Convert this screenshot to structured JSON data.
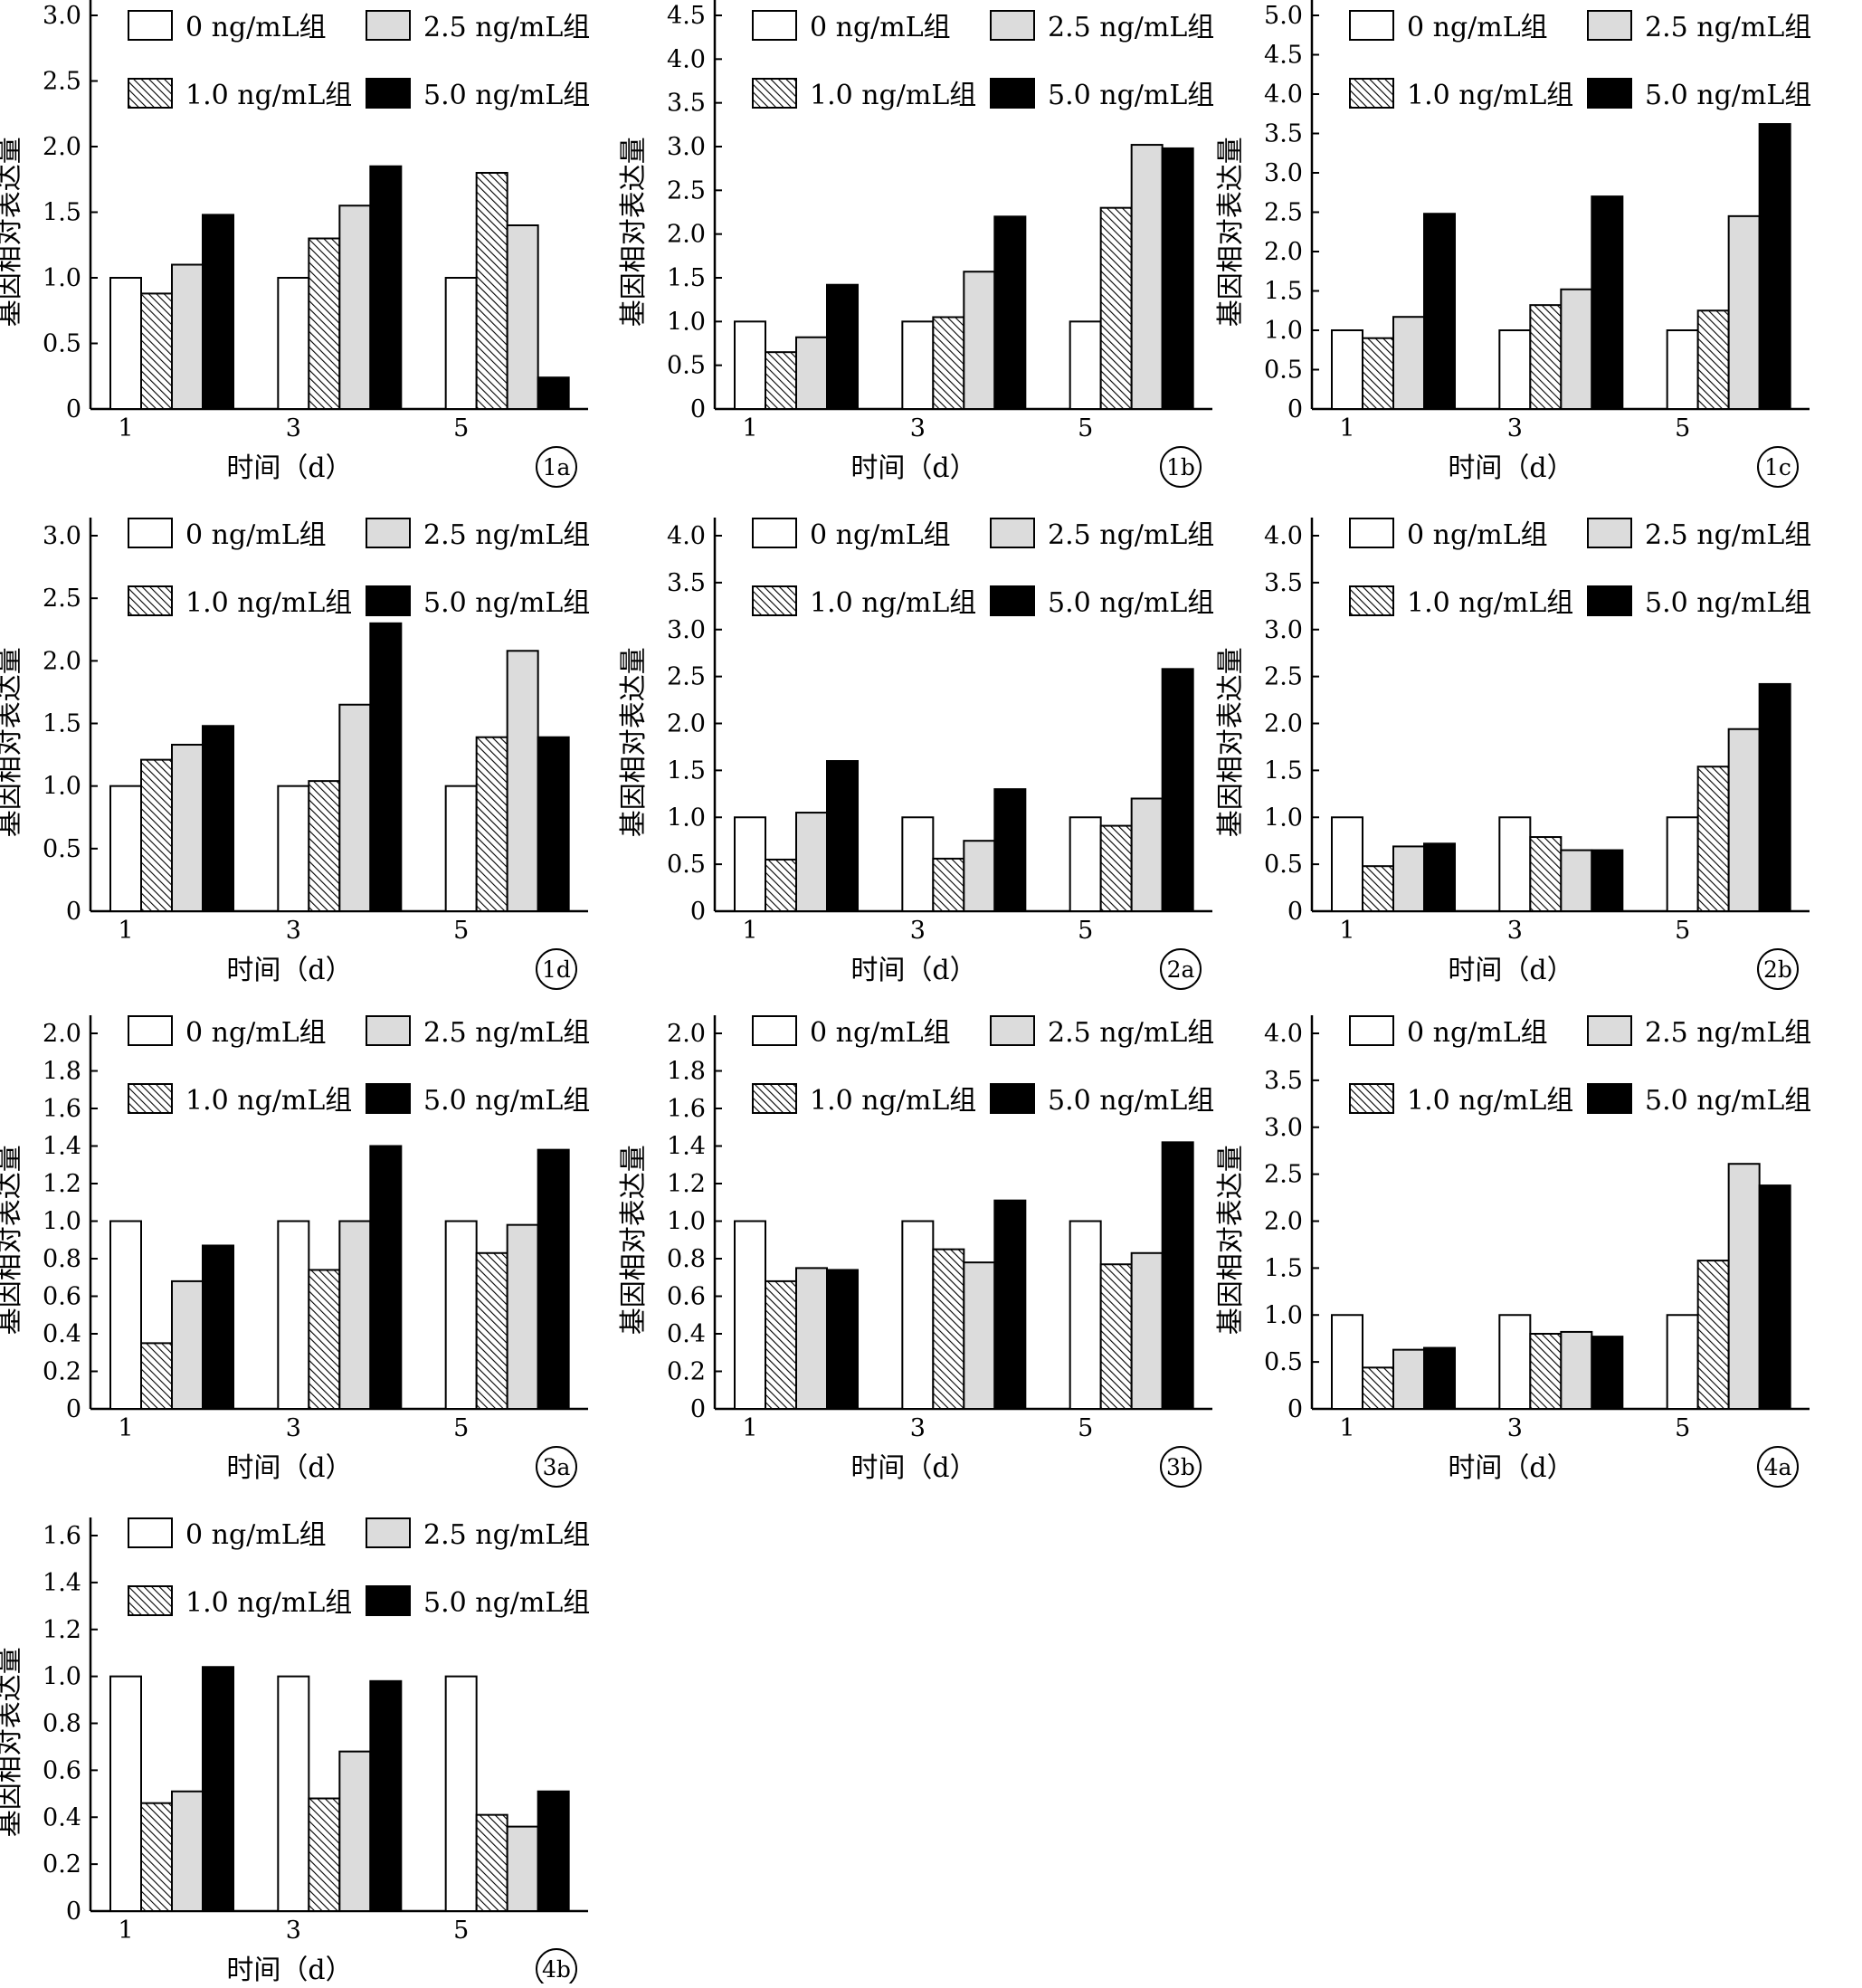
{
  "legend": {
    "items": [
      {
        "label": "0 ng/mL组",
        "pattern": "white"
      },
      {
        "label": "2.5 ng/mL组",
        "pattern": "lightgray"
      },
      {
        "label": "1.0 ng/mL组",
        "pattern": "hatch"
      },
      {
        "label": "5.0 ng/mL组",
        "pattern": "black"
      }
    ]
  },
  "colors": {
    "white": "#ffffff",
    "lightgray": "#dcdcdc",
    "black": "#000000",
    "axis": "#000000"
  },
  "xlabel": "时间（d）",
  "ylabel": "基因相对表达量",
  "categories": [
    "1",
    "3",
    "5"
  ],
  "series_order": [
    "0 ng/mL组",
    "1.0 ng/mL组",
    "2.5 ng/mL组",
    "5.0 ng/mL组"
  ],
  "chart_data": [
    {
      "type": "bar",
      "panel": "1a",
      "xlabel": "时间（d）",
      "ylabel": "基因相对表达量",
      "categories": [
        "1",
        "3",
        "5"
      ],
      "ylim": [
        0,
        3.0
      ],
      "yticks": [
        "0",
        "0.5",
        "1.0",
        "1.5",
        "2.0",
        "2.5",
        "3.0"
      ],
      "series": [
        {
          "name": "0 ng/mL组",
          "values": [
            1.0,
            1.0,
            1.0
          ]
        },
        {
          "name": "1.0 ng/mL组",
          "values": [
            0.88,
            1.3,
            1.8
          ]
        },
        {
          "name": "2.5 ng/mL组",
          "values": [
            1.1,
            1.55,
            1.4
          ]
        },
        {
          "name": "5.0 ng/mL组",
          "values": [
            1.48,
            1.85,
            0.24
          ]
        }
      ]
    },
    {
      "type": "bar",
      "panel": "1b",
      "xlabel": "时间（d）",
      "ylabel": "基因相对表达量",
      "categories": [
        "1",
        "3",
        "5"
      ],
      "ylim": [
        0,
        4.5
      ],
      "yticks": [
        "0",
        "0.5",
        "1.0",
        "1.5",
        "2.0",
        "2.5",
        "3.0",
        "3.5",
        "4.0",
        "4.5"
      ],
      "series": [
        {
          "name": "0 ng/mL组",
          "values": [
            1.0,
            1.0,
            1.0
          ]
        },
        {
          "name": "1.0 ng/mL组",
          "values": [
            0.65,
            1.05,
            2.3
          ]
        },
        {
          "name": "2.5 ng/mL组",
          "values": [
            0.82,
            1.57,
            3.02
          ]
        },
        {
          "name": "5.0 ng/mL组",
          "values": [
            1.42,
            2.2,
            2.98
          ]
        }
      ]
    },
    {
      "type": "bar",
      "panel": "1c",
      "xlabel": "时间（d）",
      "ylabel": "基因相对表达量",
      "categories": [
        "1",
        "3",
        "5"
      ],
      "ylim": [
        0,
        5.0
      ],
      "yticks": [
        "0",
        "0.5",
        "1.0",
        "1.5",
        "2.0",
        "2.5",
        "3.0",
        "3.5",
        "4.0",
        "4.5",
        "5.0"
      ],
      "series": [
        {
          "name": "0 ng/mL组",
          "values": [
            1.0,
            1.0,
            1.0
          ]
        },
        {
          "name": "1.0 ng/mL组",
          "values": [
            0.9,
            1.32,
            1.25
          ]
        },
        {
          "name": "2.5 ng/mL组",
          "values": [
            1.17,
            1.52,
            2.45
          ]
        },
        {
          "name": "5.0 ng/mL组",
          "values": [
            2.48,
            2.7,
            3.62
          ]
        }
      ]
    },
    {
      "type": "bar",
      "panel": "1d",
      "xlabel": "时间（d）",
      "ylabel": "基因相对表达量",
      "categories": [
        "1",
        "3",
        "5"
      ],
      "ylim": [
        0,
        3.0
      ],
      "yticks": [
        "0",
        "0.5",
        "1.0",
        "1.5",
        "2.0",
        "2.5",
        "3.0"
      ],
      "series": [
        {
          "name": "0 ng/mL组",
          "values": [
            1.0,
            1.0,
            1.0
          ]
        },
        {
          "name": "1.0 ng/mL组",
          "values": [
            1.21,
            1.04,
            1.39
          ]
        },
        {
          "name": "2.5 ng/mL组",
          "values": [
            1.33,
            1.65,
            2.08
          ]
        },
        {
          "name": "5.0 ng/mL组",
          "values": [
            1.48,
            2.3,
            1.39
          ]
        }
      ]
    },
    {
      "type": "bar",
      "panel": "2a",
      "xlabel": "时间（d）",
      "ylabel": "基因相对表达量",
      "categories": [
        "1",
        "3",
        "5"
      ],
      "ylim": [
        0,
        4.0
      ],
      "yticks": [
        "0",
        "0.5",
        "1.0",
        "1.5",
        "2.0",
        "2.5",
        "3.0",
        "3.5",
        "4.0"
      ],
      "series": [
        {
          "name": "0 ng/mL组",
          "values": [
            1.0,
            1.0,
            1.0
          ]
        },
        {
          "name": "1.0 ng/mL组",
          "values": [
            0.55,
            0.56,
            0.91
          ]
        },
        {
          "name": "2.5 ng/mL组",
          "values": [
            1.05,
            0.75,
            1.2
          ]
        },
        {
          "name": "5.0 ng/mL组",
          "values": [
            1.6,
            1.3,
            2.58
          ]
        }
      ]
    },
    {
      "type": "bar",
      "panel": "2b",
      "xlabel": "时间（d）",
      "ylabel": "基因相对表达量",
      "categories": [
        "1",
        "3",
        "5"
      ],
      "ylim": [
        0,
        4.0
      ],
      "yticks": [
        "0",
        "0.5",
        "1.0",
        "1.5",
        "2.0",
        "2.5",
        "3.0",
        "3.5",
        "4.0"
      ],
      "series": [
        {
          "name": "0 ng/mL组",
          "values": [
            1.0,
            1.0,
            1.0
          ]
        },
        {
          "name": "1.0 ng/mL组",
          "values": [
            0.48,
            0.79,
            1.54
          ]
        },
        {
          "name": "2.5 ng/mL组",
          "values": [
            0.69,
            0.65,
            1.94
          ]
        },
        {
          "name": "5.0 ng/mL组",
          "values": [
            0.72,
            0.65,
            2.42
          ]
        }
      ]
    },
    {
      "type": "bar",
      "panel": "3a",
      "xlabel": "时间（d）",
      "ylabel": "基因相对表达量",
      "categories": [
        "1",
        "3",
        "5"
      ],
      "ylim": [
        0,
        2.0
      ],
      "yticks": [
        "0",
        "0.2",
        "0.4",
        "0.6",
        "0.8",
        "1.0",
        "1.2",
        "1.4",
        "1.6",
        "1.8",
        "2.0"
      ],
      "series": [
        {
          "name": "0 ng/mL组",
          "values": [
            1.0,
            1.0,
            1.0
          ]
        },
        {
          "name": "1.0 ng/mL组",
          "values": [
            0.35,
            0.74,
            0.83
          ]
        },
        {
          "name": "2.5 ng/mL组",
          "values": [
            0.68,
            1.0,
            0.98
          ]
        },
        {
          "name": "5.0 ng/mL组",
          "values": [
            0.87,
            1.4,
            1.38
          ]
        }
      ]
    },
    {
      "type": "bar",
      "panel": "3b",
      "xlabel": "时间（d）",
      "ylabel": "基因相对表达量",
      "categories": [
        "1",
        "3",
        "5"
      ],
      "ylim": [
        0,
        2.0
      ],
      "yticks": [
        "0",
        "0.2",
        "0.4",
        "0.6",
        "0.8",
        "1.0",
        "1.2",
        "1.4",
        "1.6",
        "1.8",
        "2.0"
      ],
      "series": [
        {
          "name": "0 ng/mL组",
          "values": [
            1.0,
            1.0,
            1.0
          ]
        },
        {
          "name": "1.0 ng/mL组",
          "values": [
            0.68,
            0.85,
            0.77
          ]
        },
        {
          "name": "2.5 ng/mL组",
          "values": [
            0.75,
            0.78,
            0.83
          ]
        },
        {
          "name": "5.0 ng/mL组",
          "values": [
            0.74,
            1.11,
            1.42
          ]
        }
      ]
    },
    {
      "type": "bar",
      "panel": "4a",
      "xlabel": "时间（d）",
      "ylabel": "基因相对表达量",
      "categories": [
        "1",
        "3",
        "5"
      ],
      "ylim": [
        0,
        4.0
      ],
      "yticks": [
        "0",
        "0.5",
        "1.0",
        "1.5",
        "2.0",
        "2.5",
        "3.0",
        "3.5",
        "4.0"
      ],
      "series": [
        {
          "name": "0 ng/mL组",
          "values": [
            1.0,
            1.0,
            1.0
          ]
        },
        {
          "name": "1.0 ng/mL组",
          "values": [
            0.44,
            0.8,
            1.58
          ]
        },
        {
          "name": "2.5 ng/mL组",
          "values": [
            0.63,
            0.82,
            2.61
          ]
        },
        {
          "name": "5.0 ng/mL组",
          "values": [
            0.65,
            0.77,
            2.38
          ]
        }
      ]
    },
    {
      "type": "bar",
      "panel": "4b",
      "xlabel": "时间（d）",
      "ylabel": "基因相对表达量",
      "categories": [
        "1",
        "3",
        "5"
      ],
      "ylim": [
        0,
        1.6
      ],
      "yticks": [
        "0",
        "0.2",
        "0.4",
        "0.6",
        "0.8",
        "1.0",
        "1.2",
        "1.4",
        "1.6"
      ],
      "series": [
        {
          "name": "0 ng/mL组",
          "values": [
            1.0,
            1.0,
            1.0
          ]
        },
        {
          "name": "1.0 ng/mL组",
          "values": [
            0.46,
            0.48,
            0.41
          ]
        },
        {
          "name": "2.5 ng/mL组",
          "values": [
            0.51,
            0.68,
            0.36
          ]
        },
        {
          "name": "5.0 ng/mL组",
          "values": [
            1.04,
            0.98,
            0.51
          ]
        }
      ]
    }
  ]
}
